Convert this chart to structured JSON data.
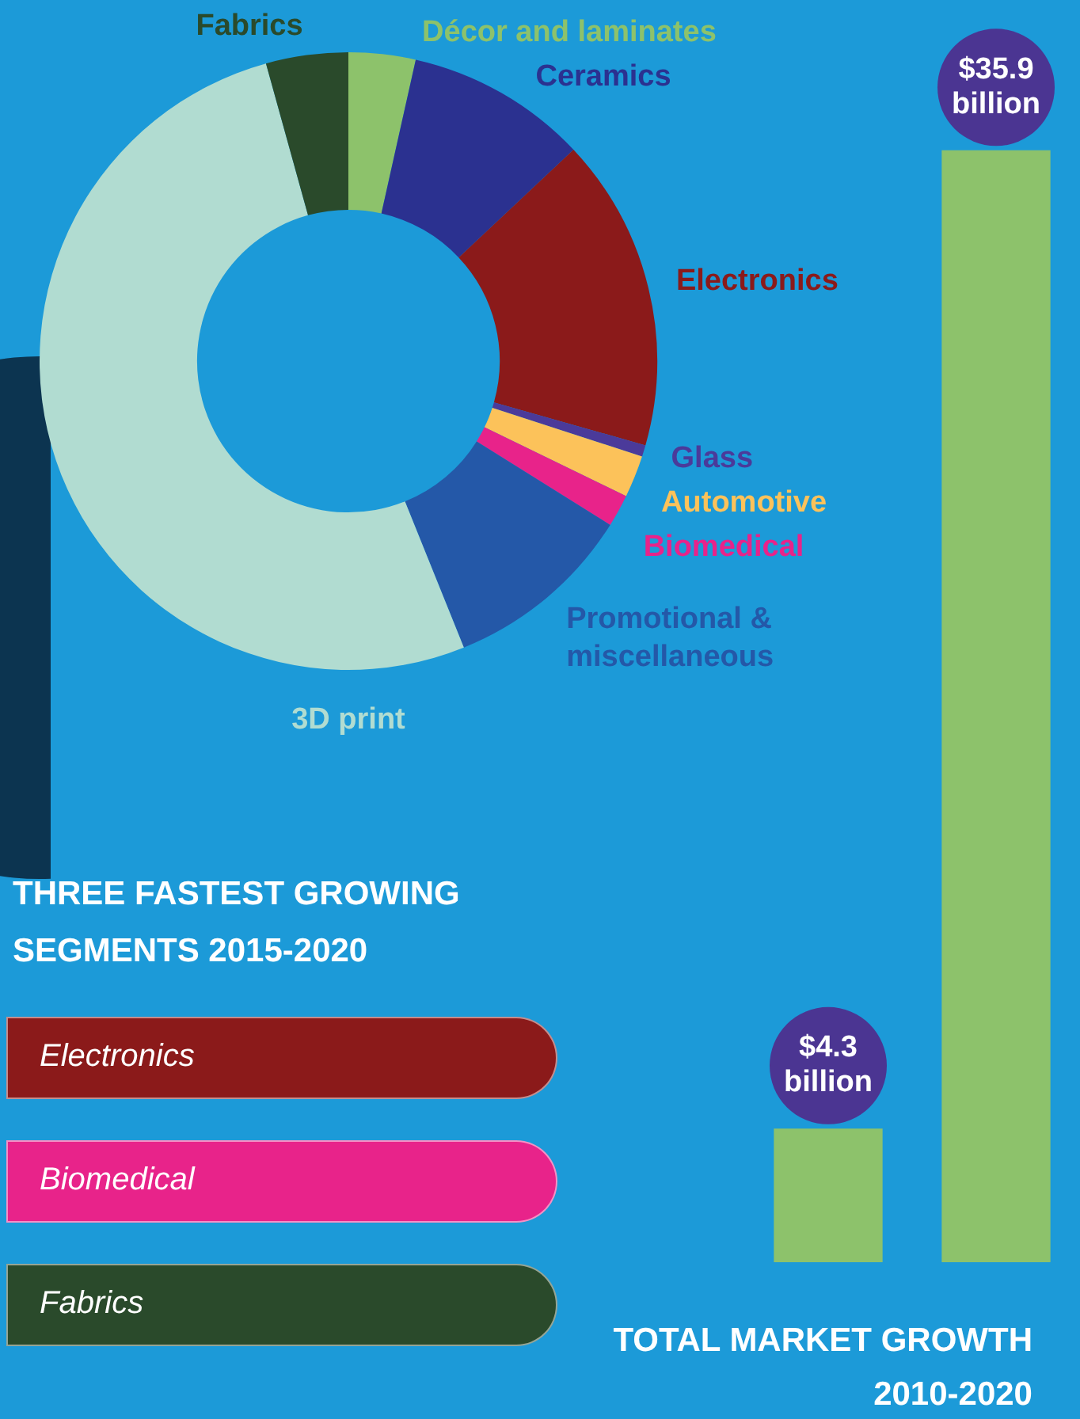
{
  "chart_data": [
    {
      "type": "donut",
      "categories": [
        "Décor and laminates",
        "Ceramics",
        "Electronics",
        "Glass",
        "Automotive",
        "Biomedical",
        "Promotional & miscellaneous",
        "3D print",
        "Fabrics"
      ],
      "values": [
        3.5,
        9.5,
        16.4,
        0.6,
        2.2,
        1.7,
        10,
        51.8,
        4.3
      ],
      "colors": [
        "#8dc26b",
        "#2b3190",
        "#8b1a1a",
        "#4b3a9a",
        "#fcc25a",
        "#e8238a",
        "#2458a8",
        "#b1dcd1",
        "#2a4a2b"
      ],
      "legend": false
    },
    {
      "type": "other",
      "title": "THREE FASTEST GROWING SEGMENTS 2015-2020",
      "annotations": [
        "Electronics",
        "Biomedical",
        "Fabrics"
      ],
      "colors": [
        "#8b1a1a",
        "#e8238a",
        "#2a4a2b"
      ]
    },
    {
      "type": "bar",
      "title": "TOTAL MARKET GROWTH 2010-2020",
      "categories": [
        null,
        null
      ],
      "values": [
        4.3,
        35.9
      ],
      "value_labels": [
        "$4.3 billion",
        "$35.9 billion"
      ],
      "color": "#8dc26b",
      "legend": false
    }
  ]
}
